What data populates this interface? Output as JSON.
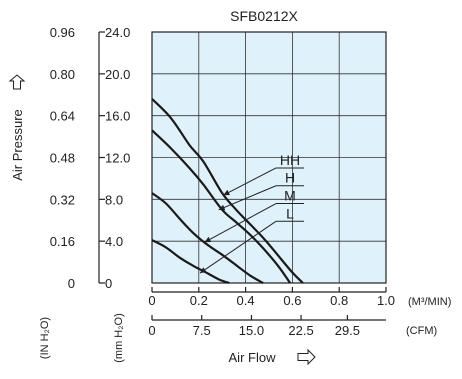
{
  "chart_data": {
    "type": "line",
    "title": "SFB0212X",
    "ylabel": "Air Pressure",
    "xlabel": "Air Flow",
    "x_unit_m3": "(M³/MIN)",
    "x_unit_cfm": "(CFM)",
    "y_unit_inh2o": "(IN H₂O)",
    "y_unit_mmh2o": "(mm H₂O)",
    "xlim": [
      0,
      1.0
    ],
    "ylim": [
      0,
      24.0
    ],
    "x_ticks_m3": [
      "0",
      "0.2",
      "0.4",
      "0.6",
      "0.8",
      "1.0"
    ],
    "x_ticks_cfm": [
      "0",
      "7.5",
      "15.0",
      "22.5",
      "29.5"
    ],
    "x_ticks_cfm_values": [
      0,
      0.2125,
      0.425,
      0.637,
      0.835
    ],
    "y_ticks_mm": [
      "0",
      "4.0",
      "8.0",
      "12.0",
      "16.0",
      "20.0",
      "24.0"
    ],
    "y_ticks_in": [
      "0",
      "0.16",
      "0.32",
      "0.48",
      "0.64",
      "0.80",
      "0.96"
    ],
    "grid": true,
    "background_color": "#dff1fb",
    "series": [
      {
        "name": "HH",
        "x": [
          0,
          0.08,
          0.16,
          0.22,
          0.3,
          0.36,
          0.42,
          0.48,
          0.54,
          0.6,
          0.645
        ],
        "y": [
          17.6,
          15.8,
          13.2,
          11.6,
          8.6,
          7.0,
          5.6,
          4.2,
          2.6,
          1.0,
          0
        ]
      },
      {
        "name": "H",
        "x": [
          0,
          0.08,
          0.16,
          0.22,
          0.3,
          0.36,
          0.42,
          0.48,
          0.54,
          0.59
        ],
        "y": [
          14.6,
          12.9,
          11.0,
          9.4,
          7.0,
          5.8,
          4.6,
          3.2,
          1.6,
          0
        ]
      },
      {
        "name": "M",
        "x": [
          0,
          0.06,
          0.12,
          0.18,
          0.24,
          0.3,
          0.36,
          0.42,
          0.475
        ],
        "y": [
          8.6,
          7.6,
          6.1,
          4.7,
          3.6,
          2.7,
          1.7,
          0.7,
          0
        ]
      },
      {
        "name": "L",
        "x": [
          0,
          0.06,
          0.12,
          0.18,
          0.24,
          0.29,
          0.33
        ],
        "y": [
          4.1,
          3.4,
          2.4,
          1.6,
          0.9,
          0.3,
          0
        ]
      }
    ],
    "label_points": [
      {
        "x": 0.53,
        "y": 11.0
      },
      {
        "x": 0.53,
        "y": 9.3
      },
      {
        "x": 0.53,
        "y": 7.6
      },
      {
        "x": 0.53,
        "y": 5.9
      }
    ],
    "label_targets": [
      {
        "x": 0.305,
        "y": 8.4
      },
      {
        "x": 0.285,
        "y": 7.0
      },
      {
        "x": 0.225,
        "y": 3.9
      },
      {
        "x": 0.205,
        "y": 0.95
      }
    ]
  }
}
